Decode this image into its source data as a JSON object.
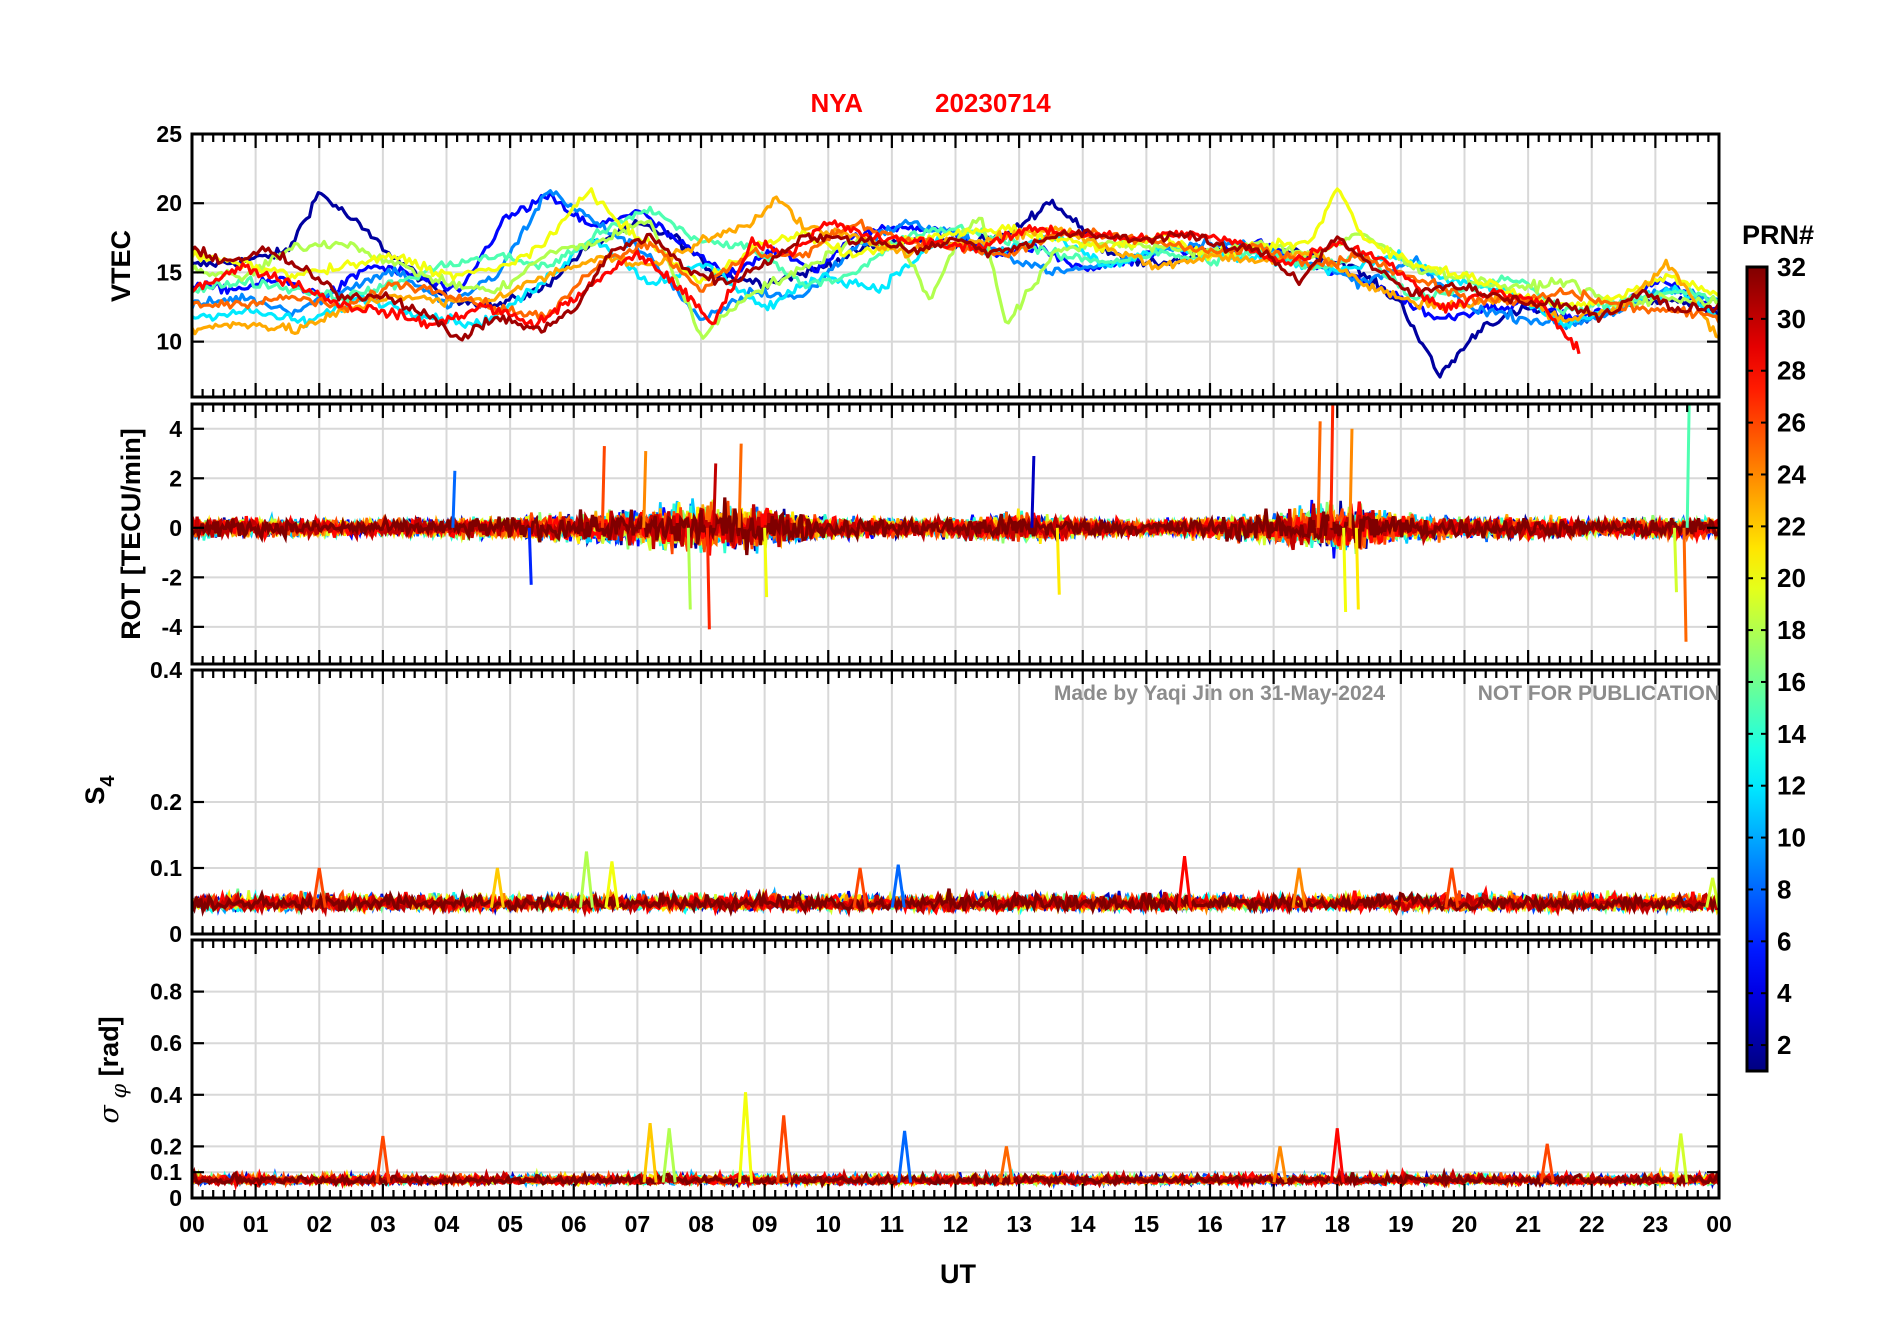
{
  "figure": {
    "title_station": "NYA",
    "title_date": "20230714",
    "title_color": "#ff0000",
    "watermark_author": "Made by Yaqi Jin on 31-May-2024",
    "watermark_note": "NOT FOR PUBLICATION",
    "xlabel": "UT",
    "colorbar_label": "PRN#",
    "colormap": "jet"
  },
  "chart_data": [
    {
      "type": "line",
      "panel": "vtec",
      "ylabel": "VTEC",
      "ylim": [
        6,
        25
      ],
      "yticks": [
        10,
        15,
        20,
        25
      ],
      "xlim": [
        0,
        24
      ],
      "xticks": [
        "00",
        "01",
        "02",
        "03",
        "04",
        "05",
        "06",
        "07",
        "08",
        "09",
        "10",
        "11",
        "12",
        "13",
        "14",
        "15",
        "16",
        "17",
        "18",
        "19",
        "20",
        "21",
        "22",
        "23",
        "00"
      ],
      "grid": true,
      "series": [
        {
          "prn": 2,
          "x": [
            0,
            0.8,
            1.5,
            2,
            2.6,
            3.2,
            4,
            4.8,
            5.5,
            6.2,
            7,
            7.6,
            8.2,
            9,
            9.8,
            10.6,
            11.3,
            12,
            12.8,
            13.5,
            14.3,
            15,
            15.8,
            16.6,
            17.4,
            18.2,
            19,
            19.6,
            20.3,
            21,
            21.8,
            22.5,
            23.2,
            24
          ],
          "y": [
            15.5,
            15.8,
            16.5,
            20.8,
            18.5,
            16,
            13.2,
            12.6,
            13.8,
            16.8,
            18.5,
            17.5,
            15,
            14.2,
            15.2,
            16.8,
            17.4,
            17,
            17.6,
            20.2,
            16.8,
            15.5,
            16.2,
            16.8,
            16.5,
            15.5,
            12.8,
            7.5,
            11.2,
            12.4,
            11.5,
            12.5,
            13.2,
            12
          ]
        },
        {
          "prn": 5,
          "x": [
            0,
            0.7,
            1.4,
            2.1,
            2.8,
            3.5,
            4.2,
            4.9,
            5.6,
            6.3,
            7,
            7.7,
            8.4,
            9.1,
            9.8,
            10.5,
            11.2,
            11.9,
            12.6,
            13.3,
            14,
            14.7,
            15.4,
            16.1,
            16.8,
            17.5,
            18.2,
            18.9,
            19.6,
            20.3,
            21,
            21.7,
            22.4,
            23.1,
            24
          ],
          "y": [
            14,
            13.8,
            14.5,
            13.2,
            15.5,
            14.8,
            13.5,
            18.8,
            20.5,
            18.2,
            19.5,
            17,
            14.8,
            16.6,
            15.2,
            17.8,
            18.4,
            17.8,
            16.4,
            16.8,
            15.2,
            15.8,
            16.8,
            16.4,
            17.2,
            15.4,
            14.8,
            13.4,
            11.6,
            12.4,
            12.8,
            11.6,
            12.4,
            14.6,
            12.2
          ]
        },
        {
          "prn": 9,
          "x": [
            0,
            0.8,
            1.6,
            2.4,
            3.2,
            4,
            4.8,
            5.6,
            6.4,
            7.2,
            8,
            8.8,
            9.6,
            10.4,
            11.2,
            12,
            12.8,
            13.6,
            14.4,
            15.2,
            16,
            16.8,
            17.6,
            18.4,
            19.2,
            20,
            20.8,
            21.6,
            22.4,
            23.2,
            24
          ],
          "y": [
            12.6,
            13.2,
            12.2,
            13.8,
            15.2,
            12.6,
            14.8,
            21,
            18.4,
            16.2,
            11.4,
            13.6,
            13.2,
            16.8,
            18.6,
            17.8,
            16.2,
            15,
            15.6,
            16.6,
            17.2,
            16.8,
            15.6,
            14.2,
            15.8,
            12.6,
            11.8,
            11.2,
            12.2,
            13.8,
            13
          ]
        },
        {
          "prn": 12,
          "x": [
            0,
            0.9,
            1.8,
            2.7,
            3.6,
            4.5,
            5.4,
            6.3,
            7.2,
            8.1,
            9,
            9.9,
            10.8,
            11.7,
            12.6,
            13.5,
            14.4,
            15.3,
            16.2,
            17.1,
            18,
            18.9,
            19.8,
            20.7,
            21.6,
            22.5,
            23.4,
            24
          ],
          "y": [
            11.8,
            12.2,
            11.4,
            13.2,
            12,
            11.2,
            13.8,
            17.6,
            14.2,
            15.6,
            12.4,
            14.8,
            13.8,
            17.2,
            16.4,
            17.6,
            15.4,
            16.8,
            16.2,
            15.8,
            15.2,
            16.2,
            14.4,
            13.6,
            11.2,
            12.6,
            13.8,
            11.8
          ]
        },
        {
          "prn": 15,
          "x": [
            0,
            0.8,
            1.6,
            2.4,
            3.2,
            4,
            4.8,
            5.6,
            6.4,
            7.2,
            8,
            8.8,
            9.6,
            10.4,
            11.2,
            12,
            12.8,
            13.6,
            14.4,
            15.2,
            16,
            16.8,
            17.6,
            18.4,
            19.2,
            20,
            20.8,
            21.6,
            22.4,
            23.2,
            24
          ],
          "y": [
            13.6,
            14.4,
            13.8,
            13.2,
            14.2,
            15.6,
            16.2,
            15.4,
            17.8,
            19.6,
            17.2,
            16.8,
            14.2,
            14.8,
            17.6,
            18.2,
            17.4,
            16.2,
            15.8,
            16.4,
            15.8,
            16.6,
            15.2,
            16.4,
            13.2,
            13.8,
            14.6,
            12.2,
            12.8,
            13.6,
            13.2
          ]
        },
        {
          "prn": 18,
          "x": [
            0,
            0.8,
            1.6,
            2.4,
            3.2,
            4,
            4.8,
            5.6,
            6.4,
            7.2,
            8,
            8.8,
            9.6,
            10.4,
            11.2,
            11.6,
            12,
            12.4,
            12.8,
            13.6,
            14.4,
            15.2,
            16,
            16.8,
            17.6,
            18.4,
            19.2,
            20,
            20.8,
            21.6,
            22.4,
            23.2,
            24
          ],
          "y": [
            15.2,
            14.6,
            16.8,
            17.2,
            15.6,
            14.2,
            13.6,
            16.4,
            17.2,
            18.8,
            10.4,
            13.6,
            15.2,
            17.4,
            16.8,
            12.8,
            17.2,
            19.2,
            11.2,
            16.6,
            17.2,
            16.8,
            16.4,
            17.2,
            16.2,
            17.8,
            15.4,
            14.6,
            13.8,
            14.4,
            12.6,
            13.2,
            12.8
          ]
        },
        {
          "prn": 20,
          "x": [
            0,
            0.8,
            1.6,
            2.4,
            3.2,
            4,
            4.8,
            5.6,
            6.2,
            6.8,
            7.4,
            8,
            8.8,
            9.6,
            10.4,
            11.2,
            12,
            12.8,
            13.6,
            14.4,
            15.2,
            16,
            16.8,
            17.6,
            18,
            18.4,
            19.2,
            20,
            20.8,
            21.6,
            22.4,
            23.2,
            24
          ],
          "y": [
            16.2,
            15.6,
            14.8,
            15.4,
            16.2,
            14.8,
            15.2,
            17.2,
            21,
            18.2,
            16.4,
            14.2,
            16.8,
            17.8,
            16.2,
            17.2,
            17.8,
            18.2,
            17.4,
            16.8,
            17.6,
            16.2,
            16.8,
            17.2,
            21.2,
            17.6,
            15.6,
            14.8,
            13.6,
            12.4,
            13.2,
            14.8,
            13.4
          ]
        },
        {
          "prn": 23,
          "x": [
            0,
            0.8,
            1.6,
            2.4,
            3.2,
            4,
            4.8,
            5.6,
            6.4,
            7.2,
            8,
            8.8,
            9.2,
            9.6,
            10.4,
            11.2,
            12,
            12.8,
            13.6,
            14.4,
            15.2,
            16,
            16.8,
            17.6,
            18.4,
            19.2,
            20,
            20.8,
            21.6,
            22.4,
            23.2,
            24
          ],
          "y": [
            10.8,
            11.4,
            10.8,
            12.2,
            13.4,
            12.8,
            13.2,
            14.8,
            16.2,
            15.4,
            17.2,
            18.6,
            20.6,
            18.2,
            17.6,
            16.4,
            17.2,
            17.6,
            18.2,
            16.8,
            15.4,
            16.2,
            15.8,
            16.6,
            14.2,
            12.8,
            12.6,
            13.2,
            11.6,
            12.4,
            15.6,
            10.2
          ]
        },
        {
          "prn": 25,
          "x": [
            0,
            0.8,
            1.6,
            2.4,
            3.2,
            4,
            4.8,
            5.6,
            6.4,
            7.2,
            8,
            8.8,
            9.6,
            10.4,
            11.2,
            12,
            12.8,
            13.6,
            14.4,
            15.2,
            16,
            16.8,
            17.6,
            18.4,
            19.2,
            20,
            20.8,
            21.6,
            22.4,
            23.2,
            24
          ],
          "y": [
            12.6,
            12.8,
            13.2,
            12.4,
            14.2,
            13.6,
            12.4,
            11.8,
            15.8,
            17.2,
            13.8,
            16.4,
            16.2,
            18.6,
            17.4,
            16.8,
            16.2,
            17.8,
            17.6,
            17.2,
            16.4,
            16.8,
            15.4,
            16.2,
            14.6,
            13.2,
            12.8,
            13.6,
            12.6,
            12.2,
            11.8
          ]
        },
        {
          "prn": 28,
          "x": [
            0,
            0.8,
            1.6,
            2.4,
            3,
            3.8,
            4.6,
            5.4,
            6.2,
            7,
            7.6,
            8.2,
            8.8,
            9.4,
            10,
            10.8,
            11.6,
            12.4,
            13.2,
            14,
            14.8,
            15.6,
            16.4,
            17.2,
            18,
            18.8,
            19.6,
            20.4,
            21.2,
            21.8
          ],
          "y": [
            13.8,
            15.4,
            14.2,
            12.6,
            12.2,
            11.2,
            12.6,
            11.2,
            13.8,
            16.4,
            14.2,
            11.2,
            17.2,
            16.4,
            18.6,
            17.4,
            17.2,
            16.8,
            18.2,
            17.8,
            17.4,
            17.8,
            17.2,
            15.6,
            17.2,
            15.8,
            12.4,
            13.6,
            12.8,
            9.2
          ]
        },
        {
          "prn": 31,
          "x": [
            0,
            0.6,
            1.2,
            1.8,
            2.4,
            3,
            3.6,
            4.2,
            4.8,
            5.4,
            6,
            6.6,
            7.2,
            7.8,
            8.4,
            9,
            9.6,
            10.2,
            10.8,
            11.4,
            12,
            12.6,
            13.2,
            13.8,
            14.4,
            15,
            15.6,
            16.2,
            16.8,
            17.4,
            18,
            18.6,
            19.2,
            19.8,
            20.4,
            21,
            21.6,
            22.2,
            22.8,
            23.4,
            24
          ],
          "y": [
            16.6,
            15.8,
            16.6,
            15,
            13.2,
            13.4,
            12.2,
            10.2,
            11.8,
            10.8,
            12.2,
            16.6,
            17.6,
            15.2,
            14.2,
            15.6,
            17.6,
            17.4,
            17.2,
            16.6,
            17.4,
            16.4,
            17.2,
            17.8,
            17.6,
            17.4,
            17.8,
            16.8,
            16.6,
            14.4,
            17.6,
            15.2,
            13.4,
            14.2,
            13.4,
            12.8,
            12.6,
            11.8,
            13.6,
            12.2,
            12.6
          ]
        }
      ]
    },
    {
      "type": "line",
      "panel": "rot",
      "ylabel": "ROT [TECU/min]",
      "ylim": [
        -5.5,
        5
      ],
      "yticks": [
        -4,
        -2,
        0,
        2,
        4
      ],
      "grid": true,
      "envelope_hours": [
        0,
        1,
        2,
        3,
        4,
        5,
        6,
        7,
        8,
        9,
        10,
        11,
        12,
        13,
        14,
        15,
        16,
        17,
        18,
        19,
        20,
        21,
        22,
        23,
        24
      ],
      "envelope_amplitude": [
        0.9,
        0.8,
        0.7,
        0.7,
        0.8,
        1.0,
        1.2,
        1.6,
        2.2,
        1.8,
        0.9,
        0.8,
        0.9,
        1.3,
        0.8,
        0.6,
        0.9,
        1.4,
        2.2,
        1.2,
        0.9,
        0.9,
        0.7,
        0.9,
        0.8
      ],
      "spikes": [
        {
          "x": 6.45,
          "y": 3.3
        },
        {
          "x": 7.1,
          "y": 3.1
        },
        {
          "x": 7.8,
          "y": -3.3
        },
        {
          "x": 8.1,
          "y": -4.1
        },
        {
          "x": 8.6,
          "y": 3.4
        },
        {
          "x": 8.2,
          "y": 2.6
        },
        {
          "x": 9.0,
          "y": -2.8
        },
        {
          "x": 13.2,
          "y": 2.9
        },
        {
          "x": 13.6,
          "y": -2.7
        },
        {
          "x": 17.9,
          "y": 5.4
        },
        {
          "x": 17.7,
          "y": 4.3
        },
        {
          "x": 18.2,
          "y": 4.0
        },
        {
          "x": 18.1,
          "y": -3.4
        },
        {
          "x": 18.3,
          "y": -3.3
        },
        {
          "x": 23.3,
          "y": -2.6
        },
        {
          "x": 23.5,
          "y": 5.1
        },
        {
          "x": 23.45,
          "y": -4.6
        },
        {
          "x": 4.1,
          "y": 2.3
        },
        {
          "x": 5.3,
          "y": -2.3
        }
      ]
    },
    {
      "type": "line",
      "panel": "s4",
      "ylabel": "S4",
      "ylim": [
        0,
        0.4
      ],
      "yticks": [
        0,
        0.1,
        0.2,
        0.4
      ],
      "grid": true,
      "baseline": 0.04,
      "noise_amplitude": 0.02,
      "spikes": [
        {
          "x": 2.0,
          "y": 0.1
        },
        {
          "x": 4.8,
          "y": 0.1
        },
        {
          "x": 6.2,
          "y": 0.125
        },
        {
          "x": 6.6,
          "y": 0.11
        },
        {
          "x": 10.5,
          "y": 0.1
        },
        {
          "x": 11.1,
          "y": 0.105
        },
        {
          "x": 15.6,
          "y": 0.118
        },
        {
          "x": 17.4,
          "y": 0.1
        },
        {
          "x": 19.8,
          "y": 0.1
        },
        {
          "x": 23.9,
          "y": 0.085
        }
      ]
    },
    {
      "type": "line",
      "panel": "sigma_phi",
      "ylabel": "σφ [rad]",
      "ylim": [
        0,
        1
      ],
      "yticks": [
        0,
        0.1,
        0.2,
        0.4,
        0.6,
        0.8
      ],
      "grid": true,
      "baseline": 0.06,
      "noise_amplitude": 0.03,
      "spikes": [
        {
          "x": 3.0,
          "y": 0.24
        },
        {
          "x": 7.2,
          "y": 0.29
        },
        {
          "x": 7.5,
          "y": 0.27
        },
        {
          "x": 8.7,
          "y": 0.41
        },
        {
          "x": 9.3,
          "y": 0.32
        },
        {
          "x": 11.2,
          "y": 0.26
        },
        {
          "x": 18.0,
          "y": 0.27
        },
        {
          "x": 17.1,
          "y": 0.2
        },
        {
          "x": 21.3,
          "y": 0.21
        },
        {
          "x": 23.4,
          "y": 0.25
        },
        {
          "x": 12.8,
          "y": 0.2
        }
      ]
    }
  ],
  "colorbar": {
    "ticks": [
      2,
      4,
      6,
      8,
      10,
      12,
      14,
      16,
      18,
      20,
      22,
      24,
      26,
      28,
      30,
      32
    ],
    "min": 1,
    "max": 32
  }
}
